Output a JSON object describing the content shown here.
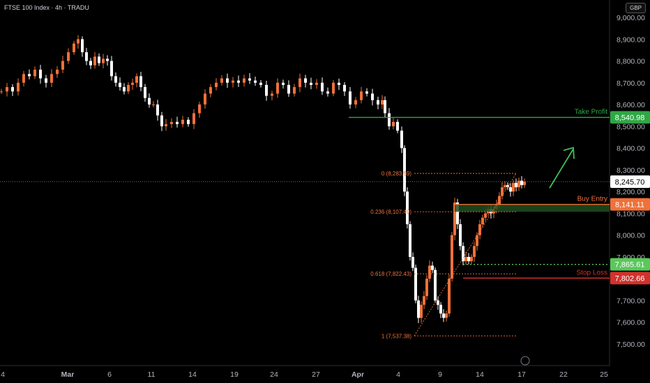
{
  "header": {
    "title": "FTSE 100 Index · 4h · TRADU",
    "currency": "GBP"
  },
  "chart_data": {
    "type": "candlestick",
    "y_axis": {
      "ticks": [
        "9,000.00",
        "8,900.00",
        "8,800.00",
        "8,700.00",
        "8,600.00",
        "8,500.00",
        "8,400.00",
        "8,300.00",
        "8,200.00",
        "8,100.00",
        "8,000.00",
        "7,900.00",
        "7,800.00",
        "7,700.00",
        "7,600.00",
        "7,500.00"
      ],
      "ylim": [
        7460,
        9020
      ]
    },
    "x_axis": {
      "ticks": [
        "4",
        "Mar",
        "6",
        "11",
        "14",
        "19",
        "24",
        "27",
        "Apr",
        "4",
        "9",
        "14",
        "17",
        "22",
        "25"
      ]
    },
    "last_price": 8245.7,
    "levels": [
      {
        "label": "Take Profit",
        "price": 8540.98,
        "price_label": "8,540.98",
        "color": "#2fa745"
      },
      {
        "label": "Buy Entry",
        "price": 8141.11,
        "price_label": "8,141.11",
        "color": "#f0713a"
      },
      {
        "label": "",
        "price": 7865.61,
        "price_label": "7,865.61",
        "color": "#5ac85a"
      },
      {
        "label": "Stop Loss",
        "price": 7802.66,
        "price_label": "7,802.66",
        "color": "#d2322d"
      }
    ],
    "fibonacci": [
      {
        "label": "0 (8,283.59)",
        "price": 8283.59
      },
      {
        "label": "0.236 (8,107.49)",
        "price": 8107.49
      },
      {
        "label": "0.618 (7,822.43)",
        "price": 7822.43
      },
      {
        "label": "1 (7,537.38)",
        "price": 7537.38
      }
    ],
    "price_path": [
      [
        0,
        8660
      ],
      [
        8,
        8680
      ],
      [
        16,
        8660
      ],
      [
        24,
        8700
      ],
      [
        32,
        8740
      ],
      [
        40,
        8730
      ],
      [
        48,
        8760
      ],
      [
        56,
        8720
      ],
      [
        64,
        8700
      ],
      [
        72,
        8740
      ],
      [
        80,
        8760
      ],
      [
        88,
        8800
      ],
      [
        96,
        8840
      ],
      [
        104,
        8880
      ],
      [
        110,
        8900
      ],
      [
        116,
        8840
      ],
      [
        122,
        8800
      ],
      [
        128,
        8780
      ],
      [
        134,
        8820
      ],
      [
        140,
        8790
      ],
      [
        146,
        8810
      ],
      [
        152,
        8800
      ],
      [
        158,
        8730
      ],
      [
        164,
        8700
      ],
      [
        170,
        8680
      ],
      [
        176,
        8660
      ],
      [
        182,
        8690
      ],
      [
        188,
        8700
      ],
      [
        194,
        8730
      ],
      [
        200,
        8680
      ],
      [
        206,
        8630
      ],
      [
        212,
        8600
      ],
      [
        218,
        8600
      ],
      [
        224,
        8550
      ],
      [
        230,
        8500
      ],
      [
        236,
        8510
      ],
      [
        244,
        8520
      ],
      [
        252,
        8510
      ],
      [
        260,
        8530
      ],
      [
        268,
        8510
      ],
      [
        276,
        8560
      ],
      [
        284,
        8600
      ],
      [
        292,
        8650
      ],
      [
        300,
        8680
      ],
      [
        308,
        8700
      ],
      [
        316,
        8720
      ],
      [
        324,
        8700
      ],
      [
        332,
        8710
      ],
      [
        340,
        8700
      ],
      [
        348,
        8720
      ],
      [
        356,
        8710
      ],
      [
        364,
        8700
      ],
      [
        372,
        8690
      ],
      [
        380,
        8640
      ],
      [
        388,
        8650
      ],
      [
        396,
        8700
      ],
      [
        404,
        8690
      ],
      [
        412,
        8650
      ],
      [
        420,
        8680
      ],
      [
        428,
        8720
      ],
      [
        436,
        8700
      ],
      [
        444,
        8690
      ],
      [
        452,
        8700
      ],
      [
        460,
        8660
      ],
      [
        468,
        8650
      ],
      [
        476,
        8700
      ],
      [
        484,
        8690
      ],
      [
        492,
        8660
      ],
      [
        500,
        8600
      ],
      [
        508,
        8620
      ],
      [
        516,
        8660
      ],
      [
        524,
        8650
      ],
      [
        532,
        8620
      ],
      [
        540,
        8600
      ],
      [
        546,
        8620
      ],
      [
        550,
        8560
      ],
      [
        556,
        8500
      ],
      [
        562,
        8520
      ],
      [
        568,
        8480
      ],
      [
        574,
        8400
      ],
      [
        578,
        8200
      ],
      [
        582,
        8050
      ],
      [
        586,
        7900
      ],
      [
        590,
        7850
      ],
      [
        594,
        7700
      ],
      [
        598,
        7620
      ],
      [
        602,
        7680
      ],
      [
        606,
        7720
      ],
      [
        610,
        7800
      ],
      [
        614,
        7860
      ],
      [
        618,
        7840
      ],
      [
        622,
        7700
      ],
      [
        626,
        7680
      ],
      [
        630,
        7640
      ],
      [
        634,
        7620
      ],
      [
        638,
        7640
      ],
      [
        642,
        7800
      ],
      [
        646,
        8000
      ],
      [
        650,
        8150
      ],
      [
        654,
        8050
      ],
      [
        658,
        7950
      ],
      [
        662,
        7880
      ],
      [
        666,
        7900
      ],
      [
        670,
        7880
      ],
      [
        674,
        7900
      ],
      [
        678,
        7950
      ],
      [
        682,
        8000
      ],
      [
        686,
        8050
      ],
      [
        690,
        8080
      ],
      [
        694,
        8100
      ],
      [
        698,
        8120
      ],
      [
        702,
        8100
      ],
      [
        706,
        8120
      ],
      [
        710,
        8140
      ],
      [
        714,
        8180
      ],
      [
        718,
        8220
      ],
      [
        722,
        8230
      ],
      [
        726,
        8220
      ],
      [
        730,
        8200
      ],
      [
        734,
        8240
      ],
      [
        738,
        8220
      ],
      [
        742,
        8250
      ],
      [
        746,
        8230
      ],
      [
        750,
        8245
      ]
    ]
  }
}
